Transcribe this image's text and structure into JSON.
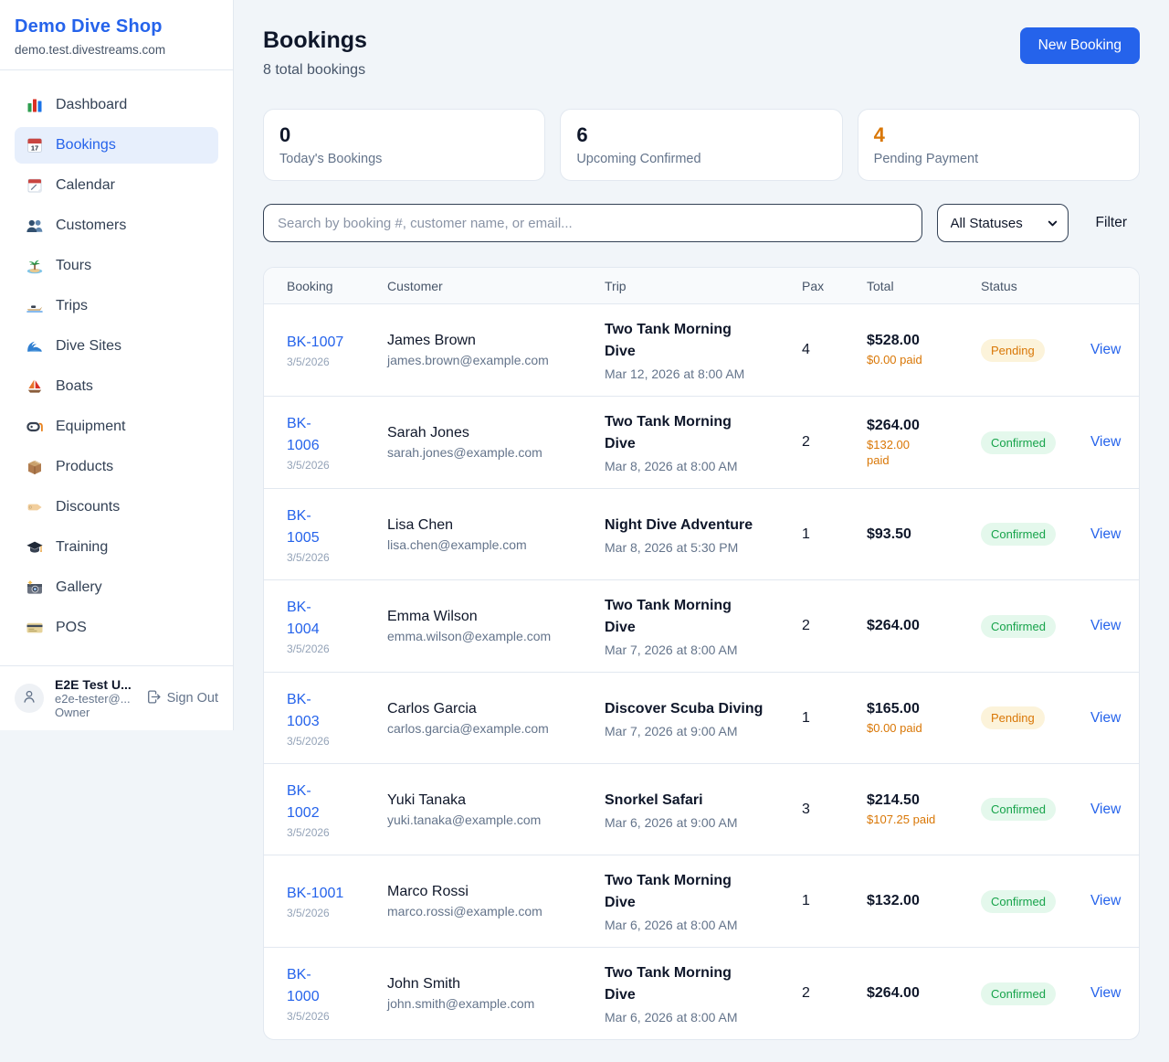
{
  "sidebar": {
    "brand": {
      "name": "Demo Dive Shop",
      "domain": "demo.test.divestreams.com"
    },
    "nav": [
      {
        "label": "Dashboard",
        "icon": "bar-chart",
        "active": false
      },
      {
        "label": "Bookings",
        "icon": "calendar-date",
        "active": true
      },
      {
        "label": "Calendar",
        "icon": "tearoff-calendar",
        "active": false
      },
      {
        "label": "Customers",
        "icon": "people",
        "active": false
      },
      {
        "label": "Tours",
        "icon": "island",
        "active": false
      },
      {
        "label": "Trips",
        "icon": "speedboat",
        "active": false
      },
      {
        "label": "Dive Sites",
        "icon": "wave",
        "active": false
      },
      {
        "label": "Boats",
        "icon": "sailboat",
        "active": false
      },
      {
        "label": "Equipment",
        "icon": "dive-mask",
        "active": false
      },
      {
        "label": "Products",
        "icon": "package",
        "active": false
      },
      {
        "label": "Discounts",
        "icon": "tag",
        "active": false
      },
      {
        "label": "Training",
        "icon": "grad-cap",
        "active": false
      },
      {
        "label": "Gallery",
        "icon": "camera",
        "active": false
      },
      {
        "label": "POS",
        "icon": "credit-card",
        "active": false
      }
    ],
    "user": {
      "name": "E2E Test U...",
      "email": "e2e-tester@...",
      "role": "Owner",
      "signout_label": "Sign Out",
      "avatar_icon": "person-icon",
      "signout_icon": "logout-icon"
    }
  },
  "header": {
    "title": "Bookings",
    "subtitle": "8 total bookings",
    "new_booking_label": "New Booking"
  },
  "stats": [
    {
      "value": "0",
      "label": "Today's Bookings",
      "accent": false
    },
    {
      "value": "6",
      "label": "Upcoming Confirmed",
      "accent": false
    },
    {
      "value": "4",
      "label": "Pending Payment",
      "accent": true
    }
  ],
  "filters": {
    "search_placeholder": "Search by booking #, customer name, or email...",
    "status_selected": "All Statuses",
    "chevron_icon": "chevron-down-icon",
    "filter_label": "Filter"
  },
  "table": {
    "columns": [
      "Booking",
      "Customer",
      "Trip",
      "Pax",
      "Total",
      "Status"
    ],
    "rows": [
      {
        "id": "BK-1007",
        "id_two_line": false,
        "date": "3/5/2026",
        "customer": "James Brown",
        "email": "james.brown@example.com",
        "trip": "Two Tank Morning Dive",
        "trip_when": "Mar 12, 2026 at 8:00 AM",
        "pax": "4",
        "total": "$528.00",
        "paid": "$0.00 paid",
        "paid_two_line": false,
        "status": "Pending",
        "action": "View"
      },
      {
        "id": "BK-1006",
        "id_two_line": true,
        "date": "3/5/2026",
        "customer": "Sarah Jones",
        "email": "sarah.jones@example.com",
        "trip": "Two Tank Morning Dive",
        "trip_when": "Mar 8, 2026 at 8:00 AM",
        "pax": "2",
        "total": "$264.00",
        "paid": "$132.00 paid",
        "paid_two_line": true,
        "status": "Confirmed",
        "action": "View"
      },
      {
        "id": "BK-1005",
        "id_two_line": true,
        "date": "3/5/2026",
        "customer": "Lisa Chen",
        "email": "lisa.chen@example.com",
        "trip": "Night Dive Adventure",
        "trip_when": "Mar 8, 2026 at 5:30 PM",
        "pax": "1",
        "total": "$93.50",
        "paid": null,
        "paid_two_line": false,
        "status": "Confirmed",
        "action": "View"
      },
      {
        "id": "BK-1004",
        "id_two_line": true,
        "date": "3/5/2026",
        "customer": "Emma Wilson",
        "email": "emma.wilson@example.com",
        "trip": "Two Tank Morning Dive",
        "trip_when": "Mar 7, 2026 at 8:00 AM",
        "pax": "2",
        "total": "$264.00",
        "paid": null,
        "paid_two_line": false,
        "status": "Confirmed",
        "action": "View"
      },
      {
        "id": "BK-1003",
        "id_two_line": true,
        "date": "3/5/2026",
        "customer": "Carlos Garcia",
        "email": "carlos.garcia@example.com",
        "trip": "Discover Scuba Diving",
        "trip_when": "Mar 7, 2026 at 9:00 AM",
        "pax": "1",
        "total": "$165.00",
        "paid": "$0.00 paid",
        "paid_two_line": false,
        "status": "Pending",
        "action": "View"
      },
      {
        "id": "BK-1002",
        "id_two_line": true,
        "date": "3/5/2026",
        "customer": "Yuki Tanaka",
        "email": "yuki.tanaka@example.com",
        "trip": "Snorkel Safari",
        "trip_when": "Mar 6, 2026 at 9:00 AM",
        "pax": "3",
        "total": "$214.50",
        "paid": "$107.25 paid",
        "paid_two_line": false,
        "status": "Confirmed",
        "action": "View"
      },
      {
        "id": "BK-1001",
        "id_two_line": false,
        "date": "3/5/2026",
        "customer": "Marco Rossi",
        "email": "marco.rossi@example.com",
        "trip": "Two Tank Morning Dive",
        "trip_when": "Mar 6, 2026 at 8:00 AM",
        "pax": "1",
        "total": "$132.00",
        "paid": null,
        "paid_two_line": false,
        "status": "Confirmed",
        "action": "View"
      },
      {
        "id": "BK-1000",
        "id_two_line": true,
        "date": "3/5/2026",
        "customer": "John Smith",
        "email": "john.smith@example.com",
        "trip": "Two Tank Morning Dive",
        "trip_when": "Mar 6, 2026 at 8:00 AM",
        "pax": "2",
        "total": "$264.00",
        "paid": null,
        "paid_two_line": false,
        "status": "Confirmed",
        "action": "View"
      }
    ]
  },
  "colors": {
    "brand_blue": "#2563eb",
    "accent_orange": "#d97706",
    "pending_badge_bg": "#fcf3da",
    "pending_badge_text": "#d97706",
    "confirmed_badge_bg": "#e4f8ec",
    "confirmed_badge_text": "#16a34a",
    "page_bg": "#f1f5f9",
    "border": "#e2e8f0"
  }
}
